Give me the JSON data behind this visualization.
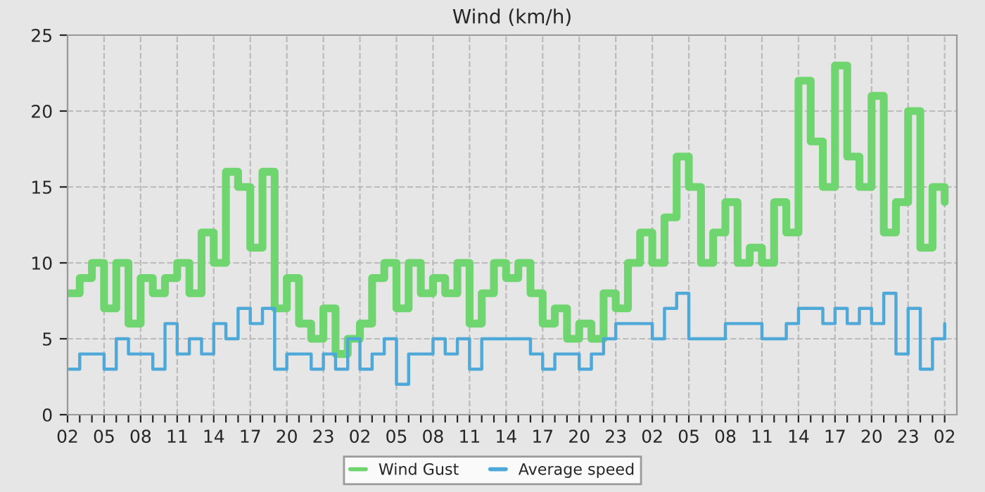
{
  "chart_data": {
    "type": "step",
    "title": "Wind (km/h)",
    "ylim": [
      0,
      25
    ],
    "yticks": [
      0,
      5,
      10,
      15,
      20,
      25
    ],
    "categories": [
      "02",
      null,
      null,
      "05",
      null,
      null,
      "08",
      null,
      null,
      "11",
      null,
      null,
      "14",
      null,
      null,
      "17",
      null,
      null,
      "20",
      null,
      null,
      "23",
      null,
      null,
      "02",
      null,
      null,
      "05",
      null,
      null,
      "08",
      null,
      null,
      "11",
      null,
      null,
      "14",
      null,
      null,
      "17",
      null,
      null,
      "20",
      null,
      null,
      "23",
      null,
      null,
      "02",
      null,
      null,
      "05",
      null,
      null,
      "08",
      null,
      null,
      "11",
      null,
      null,
      "14",
      null,
      null,
      "17",
      null,
      null,
      "20",
      null,
      null,
      "23",
      null,
      null,
      "02"
    ],
    "series": [
      {
        "name": "Wind Gust",
        "color": "#6fd66f",
        "values": [
          8,
          9,
          10,
          7,
          10,
          6,
          9,
          8,
          9,
          10,
          8,
          12,
          10,
          16,
          15,
          11,
          16,
          7,
          9,
          6,
          5,
          7,
          4,
          5,
          6,
          9,
          10,
          7,
          10,
          8,
          9,
          8,
          10,
          6,
          8,
          10,
          9,
          10,
          8,
          6,
          7,
          5,
          6,
          5,
          8,
          7,
          10,
          12,
          10,
          13,
          17,
          15,
          10,
          12,
          14,
          10,
          11,
          10,
          14,
          12,
          22,
          18,
          15,
          23,
          17,
          15,
          21,
          12,
          14,
          20,
          11,
          15,
          14
        ]
      },
      {
        "name": "Average speed",
        "color": "#4ea8d8",
        "values": [
          3,
          4,
          4,
          3,
          5,
          4,
          4,
          3,
          6,
          4,
          5,
          4,
          6,
          5,
          7,
          6,
          7,
          3,
          4,
          4,
          3,
          4,
          3,
          5,
          3,
          4,
          5,
          2,
          4,
          4,
          5,
          4,
          5,
          3,
          5,
          5,
          5,
          5,
          4,
          3,
          4,
          4,
          3,
          4,
          5,
          6,
          6,
          6,
          5,
          7,
          8,
          5,
          5,
          5,
          6,
          6,
          6,
          5,
          5,
          6,
          7,
          7,
          6,
          7,
          6,
          7,
          6,
          8,
          4,
          7,
          3,
          5,
          6
        ]
      }
    ],
    "grid": true,
    "legend": "bottom"
  }
}
